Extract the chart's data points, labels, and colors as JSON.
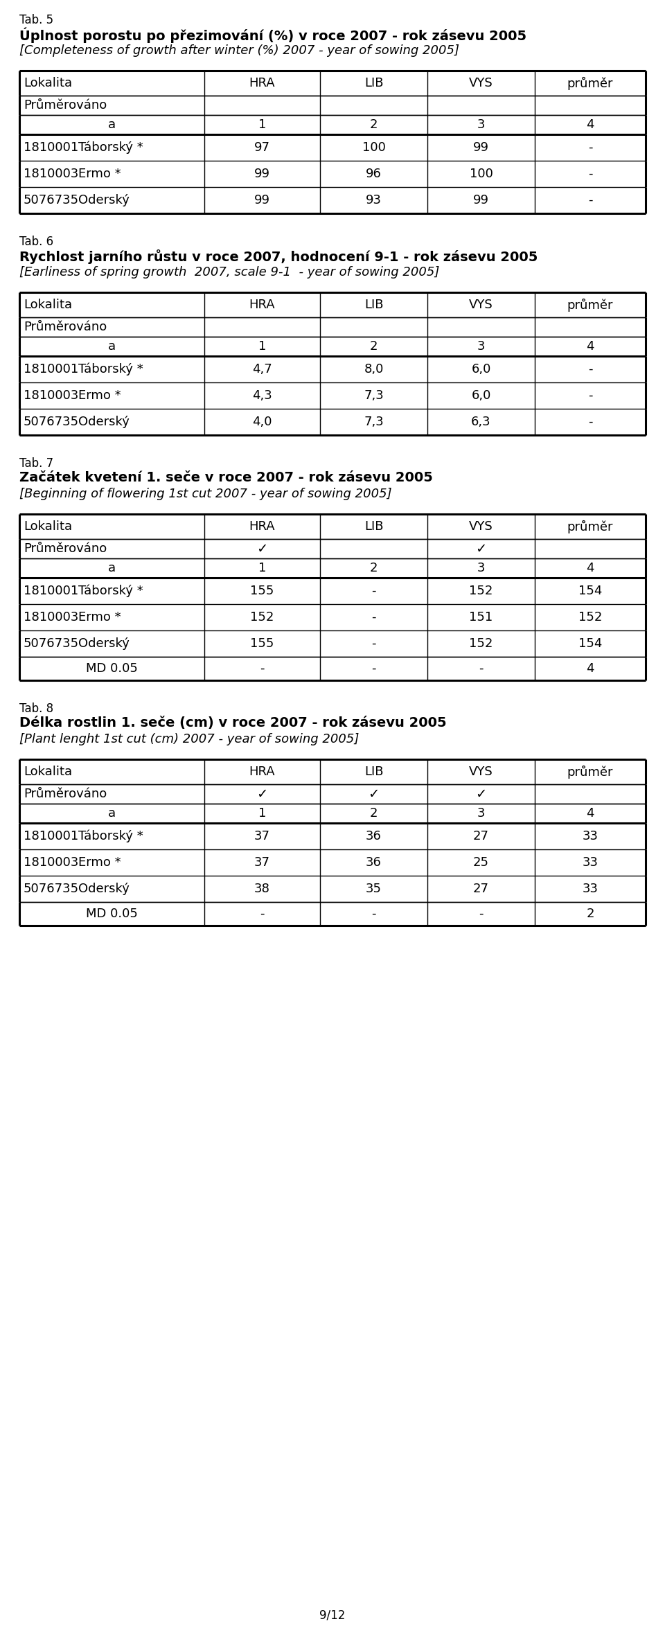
{
  "tab5": {
    "tab_label": "Tab. 5",
    "title_bold": "Úplnost porostu po přezimování (%) v roce 2007 - rok zásevu 2005",
    "title_italic": "[Completeness of growth after winter (%) 2007 - year of sowing 2005]",
    "subrow1": [
      "Průměrováno",
      "",
      "",
      "",
      ""
    ],
    "subrow2": [
      "a",
      "1",
      "2",
      "3",
      "4"
    ],
    "rows": [
      [
        "1810001",
        "Táborský *",
        "97",
        "100",
        "99",
        "-"
      ],
      [
        "1810003",
        "Ermo *",
        "99",
        "96",
        "100",
        "-"
      ],
      [
        "5076735",
        "Oderský",
        "99",
        "93",
        "99",
        "-"
      ]
    ],
    "md_row": null
  },
  "tab6": {
    "tab_label": "Tab. 6",
    "title_bold": "Rychlost jarního růstu v roce 2007, hodnocení 9-1 - rok zásevu 2005",
    "title_italic": "[Earliness of spring growth  2007, scale 9-1  - year of sowing 2005]",
    "subrow1": [
      "Průměrováno",
      "",
      "",
      "",
      ""
    ],
    "subrow2": [
      "a",
      "1",
      "2",
      "3",
      "4"
    ],
    "rows": [
      [
        "1810001",
        "Táborský *",
        "4,7",
        "8,0",
        "6,0",
        "-"
      ],
      [
        "1810003",
        "Ermo *",
        "4,3",
        "7,3",
        "6,0",
        "-"
      ],
      [
        "5076735",
        "Oderský",
        "4,0",
        "7,3",
        "6,3",
        "-"
      ]
    ],
    "md_row": null
  },
  "tab7": {
    "tab_label": "Tab. 7",
    "title_bold": "Začátek kvetení 1. seče v roce 2007 - rok zásevu 2005",
    "title_italic": "[Beginning of flowering 1st cut 2007 - year of sowing 2005]",
    "subrow1": [
      "Průměrováno",
      "✓",
      "",
      "✓",
      ""
    ],
    "subrow2": [
      "a",
      "1",
      "2",
      "3",
      "4"
    ],
    "rows": [
      [
        "1810001",
        "Táborský *",
        "155",
        "-",
        "152",
        "154"
      ],
      [
        "1810003",
        "Ermo *",
        "152",
        "-",
        "151",
        "152"
      ],
      [
        "5076735",
        "Oderský",
        "155",
        "-",
        "152",
        "154"
      ]
    ],
    "md_row": [
      "MD 0.05",
      "-",
      "-",
      "-",
      "4"
    ]
  },
  "tab8": {
    "tab_label": "Tab. 8",
    "title_bold": "Délka rostlin 1. seče (cm) v roce 2007 - rok zásevu 2005",
    "title_italic": "[Plant lenght 1st cut (cm) 2007 - year of sowing 2005]",
    "subrow1": [
      "Průměrováno",
      "✓",
      "✓",
      "✓",
      ""
    ],
    "subrow2": [
      "a",
      "1",
      "2",
      "3",
      "4"
    ],
    "rows": [
      [
        "1810001",
        "Táborský *",
        "37",
        "36",
        "27",
        "33"
      ],
      [
        "1810003",
        "Ermo *",
        "37",
        "36",
        "25",
        "33"
      ],
      [
        "5076735",
        "Oderský",
        "38",
        "35",
        "27",
        "33"
      ]
    ],
    "md_row": [
      "MD 0.05",
      "-",
      "-",
      "-",
      "2"
    ]
  },
  "page_label": "9/12",
  "bg_color": "#ffffff",
  "text_color": "#000000"
}
